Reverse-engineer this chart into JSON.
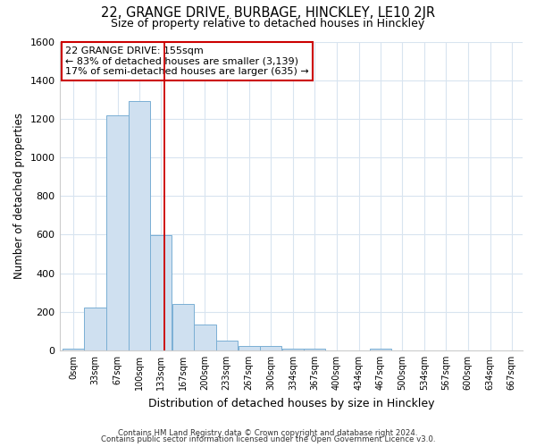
{
  "title": "22, GRANGE DRIVE, BURBAGE, HINCKLEY, LE10 2JR",
  "subtitle": "Size of property relative to detached houses in Hinckley",
  "xlabel": "Distribution of detached houses by size in Hinckley",
  "ylabel": "Number of detached properties",
  "annotation_line1": "22 GRANGE DRIVE: 155sqm",
  "annotation_line2": "← 83% of detached houses are smaller (3,139)",
  "annotation_line3": "17% of semi-detached houses are larger (635) →",
  "footer_line1": "Contains HM Land Registry data © Crown copyright and database right 2024.",
  "footer_line2": "Contains public sector information licensed under the Open Government Licence v3.0.",
  "property_size": 155,
  "bin_edges": [
    0,
    33,
    67,
    100,
    133,
    167,
    200,
    233,
    267,
    300,
    334,
    367,
    400,
    434,
    467,
    500,
    534,
    567,
    600,
    634,
    667
  ],
  "bin_counts": [
    10,
    220,
    1220,
    1290,
    595,
    240,
    135,
    50,
    25,
    25,
    10,
    10,
    0,
    0,
    10,
    0,
    0,
    0,
    0,
    0,
    0
  ],
  "bar_color": "#cfe0f0",
  "bar_edge_color": "#7aafd4",
  "vline_color": "#cc0000",
  "annotation_box_color": "#cc0000",
  "background_color": "#ffffff",
  "grid_color": "#d8e4f0",
  "ylim": [
    0,
    1600
  ],
  "xlim": [
    -5,
    700
  ]
}
